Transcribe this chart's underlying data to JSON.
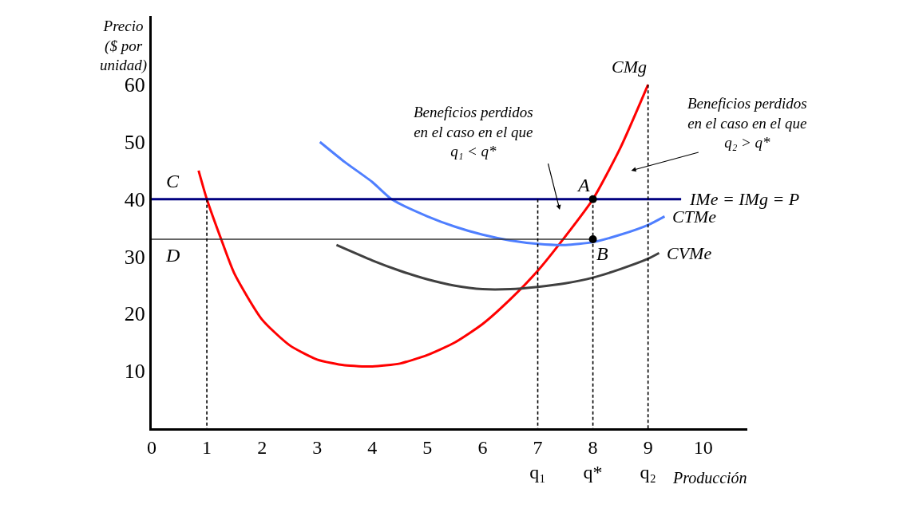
{
  "chart_data": {
    "type": "line",
    "xlabel": "Producción",
    "ylabel": "Precio\n($ por\nunidad)",
    "xlim": [
      0,
      10.8
    ],
    "ylim": [
      0,
      72
    ],
    "xticks": [
      0,
      1,
      2,
      3,
      4,
      5,
      6,
      {
        "value": 7,
        "label": "7\nq₁"
      },
      {
        "value": 8,
        "label": "8\nq*"
      },
      {
        "value": 9,
        "label": "9\nq₂"
      },
      10
    ],
    "yticks": [
      10,
      20,
      30,
      40,
      50,
      60
    ],
    "legend": false,
    "marker": "none",
    "series": [
      {
        "name": "CMg",
        "color": "#ff0000",
        "x": [
          0.85,
          1,
          1.26,
          1.5,
          2,
          2.5,
          3,
          3.5,
          4,
          4.5,
          5,
          5.5,
          6,
          6.5,
          7,
          7.5,
          8,
          8.5,
          9
        ],
        "values": [
          45,
          40,
          33,
          27,
          19,
          14.5,
          12,
          11,
          10.8,
          11.3,
          12.8,
          15,
          18.2,
          22.5,
          27.5,
          33.5,
          40,
          49,
          60
        ]
      },
      {
        "name": "CTMe",
        "color": "#4f7fff",
        "x": [
          3.05,
          3.5,
          4,
          4.35,
          5,
          5.5,
          6,
          6.5,
          7,
          7.5,
          8,
          8.5,
          9,
          9.3
        ],
        "values": [
          50,
          46.5,
          43,
          40,
          37,
          35.2,
          33.8,
          32.8,
          32.2,
          32,
          32.5,
          33.8,
          35.5,
          37
        ]
      },
      {
        "name": "CVMe",
        "color": "#404040",
        "x": [
          3.35,
          4,
          4.5,
          5,
          5.5,
          6,
          6.5,
          7,
          7.5,
          8,
          8.5,
          9,
          9.2
        ],
        "values": [
          32,
          29.3,
          27.5,
          26,
          24.9,
          24.3,
          24.3,
          24.7,
          25.3,
          26.3,
          27.8,
          29.6,
          30.6
        ]
      },
      {
        "name": "IMe = IMg = P",
        "color": "#000080",
        "x": [
          0,
          9.6
        ],
        "values": [
          40,
          40
        ]
      },
      {
        "color": "#333333",
        "x": [
          0,
          8
        ],
        "values": [
          33,
          33
        ]
      },
      {
        "color": "#000000",
        "line_style": "dashed",
        "x": [
          1,
          1
        ],
        "values": [
          0,
          40
        ]
      },
      {
        "color": "#000000",
        "line_style": "dashed",
        "x": [
          7,
          7
        ],
        "values": [
          0,
          40
        ]
      },
      {
        "color": "#000000",
        "line_style": "dashed",
        "x": [
          8,
          8
        ],
        "values": [
          0,
          40
        ]
      },
      {
        "color": "#000000",
        "line_style": "dashed",
        "x": [
          9,
          9
        ],
        "values": [
          0,
          60
        ]
      },
      {
        "type": "scatter",
        "marker": "circle",
        "color": "#000000",
        "x": [
          8,
          8
        ],
        "values": [
          40,
          33
        ]
      }
    ],
    "annotations": [
      "C",
      "D",
      {
        "text": "A",
        "x": 8,
        "y": 40
      },
      {
        "text": "B",
        "x": 8,
        "y": 33
      },
      "Beneficios perdidos\nen el caso en el que\nq₁ < q*",
      "Beneficios perdidos\nen el caso en el que\nq₂ > q*"
    ]
  }
}
